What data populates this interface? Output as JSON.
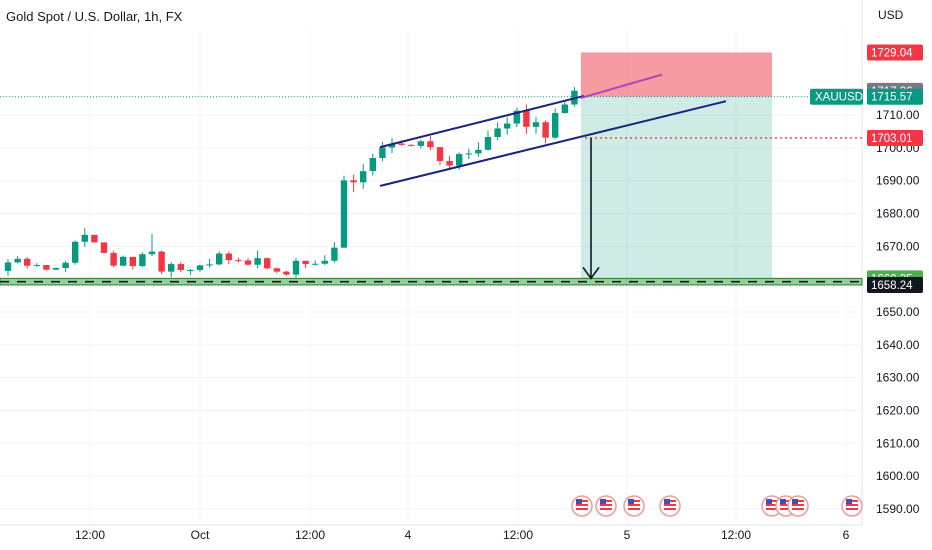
{
  "header": {
    "title": "Gold Spot / U.S. Dollar, 1h, FX"
  },
  "chart_data": {
    "type": "candlestick",
    "symbol": "XAUUSD",
    "currency": "USD",
    "ylim": [
      1585,
      1735
    ],
    "y_ticks": [
      1590,
      1600,
      1610,
      1620,
      1630,
      1640,
      1650,
      1660,
      1670,
      1680,
      1690,
      1700,
      1710
    ],
    "y_tick_labels": [
      "1590.00",
      "1600.00",
      "1610.00",
      "1620.00",
      "1630.00",
      "1640.00",
      "1650.00",
      "1660.00",
      "1670.00",
      "1680.00",
      "1690.00",
      "1700.00",
      "1710.00"
    ],
    "x_labels": [
      "12:00",
      "Oct",
      "12:00",
      "4",
      "12:00",
      "5",
      "12:00",
      "6"
    ],
    "price_tags": [
      {
        "label": "1729.04",
        "value": 1729.04,
        "color": "#f23645"
      },
      {
        "label": "1717.36",
        "value": 1717.36,
        "color": "#787b86"
      },
      {
        "label": "1715.57",
        "value": 1715.57,
        "color": "#089981",
        "symbol": "XAUUSD"
      },
      {
        "label": "1703.01",
        "value": 1703.01,
        "color": "#f23645"
      },
      {
        "label": "1660.25",
        "value": 1660.25,
        "color": "#4caf50"
      },
      {
        "label": "1658.24",
        "value": 1658.24,
        "color": "#131722"
      }
    ],
    "candles_open": [
      1662.5,
      1665.1,
      1666.2,
      1664.1,
      1664.3,
      1662.9,
      1663.4,
      1665,
      1671.4,
      1673.5,
      1671.2,
      1668,
      1664.1,
      1666.8,
      1664,
      1667.6,
      1668.4,
      1662.3,
      1664.6,
      1662.8,
      1662.8,
      1664.2,
      1664.5,
      1667.8,
      1665.8,
      1665.7,
      1664.4,
      1666.4,
      1663.3,
      1662.3,
      1661.4,
      1665.6,
      1664.6,
      1664.7,
      1665.6,
      1669.6,
      1690.1,
      1689.5,
      1692.9,
      1696.9,
      1700.1,
      1701.3,
      1700.9,
      1700.6,
      1702,
      1700.2,
      1696,
      1694.6,
      1698.1,
      1698.3,
      1699.4,
      1703.3,
      1705.9,
      1707.4,
      1711.3,
      1706.4,
      1707.8,
      1703.1,
      1710.6,
      1713.2
    ],
    "candles_close": [
      1665.1,
      1666.2,
      1664.1,
      1664.3,
      1662.9,
      1663.4,
      1665,
      1671.4,
      1673.5,
      1671.2,
      1668,
      1664.1,
      1666.8,
      1664,
      1667.6,
      1668.4,
      1662.3,
      1664.6,
      1662.8,
      1662.8,
      1664.2,
      1664.5,
      1667.8,
      1665.8,
      1665.7,
      1664.4,
      1666.4,
      1663.3,
      1662.3,
      1661.4,
      1665.6,
      1664.6,
      1664.7,
      1665.6,
      1669.6,
      1690.1,
      1689.5,
      1692.9,
      1696.9,
      1700.1,
      1701.3,
      1700.9,
      1700.6,
      1702,
      1700.2,
      1696,
      1694.6,
      1698.1,
      1698.3,
      1699.4,
      1703.3,
      1705.9,
      1707.4,
      1711.3,
      1706.4,
      1707.8,
      1703.1,
      1710.6,
      1713.2,
      1717.4
    ],
    "candles_high": [
      1666.1,
      1667,
      1666.7,
      1664.9,
      1664.4,
      1663.6,
      1665.5,
      1671.8,
      1675.6,
      1673.1,
      1671.2,
      1668.7,
      1667.2,
      1666.8,
      1668.2,
      1673.8,
      1668.7,
      1665.2,
      1665.2,
      1663.1,
      1664.4,
      1666.2,
      1668.5,
      1668.4,
      1666.5,
      1666.5,
      1668.7,
      1666.6,
      1663.6,
      1662.5,
      1666.4,
      1665.6,
      1665.7,
      1667.3,
      1671.3,
      1691.5,
      1691.8,
      1695.1,
      1698.2,
      1701.8,
      1702.9,
      1702.3,
      1701.1,
      1702.5,
      1703.6,
      1700.3,
      1697.6,
      1698.6,
      1699.7,
      1701.7,
      1705.2,
      1707.8,
      1709.3,
      1712.2,
      1713.2,
      1709.4,
      1708.4,
      1712,
      1714.3,
      1718.5
    ],
    "candles_low": [
      1661,
      1664.8,
      1663.3,
      1663.8,
      1662.6,
      1662.7,
      1662.2,
      1664.4,
      1669.8,
      1671.1,
      1667.8,
      1663.7,
      1663.9,
      1663,
      1663.6,
      1667,
      1661.5,
      1660.6,
      1662.1,
      1661.3,
      1662.1,
      1663.5,
      1664.2,
      1664.6,
      1665.1,
      1664.2,
      1663.3,
      1662.9,
      1661.8,
      1661,
      1660.5,
      1663.4,
      1664.1,
      1664.3,
      1665,
      1669.5,
      1686.5,
      1687.5,
      1691.6,
      1695.9,
      1698.4,
      1700.6,
      1700.4,
      1699.7,
      1699.3,
      1694.8,
      1693.5,
      1693.3,
      1696.6,
      1697.3,
      1699.2,
      1702.3,
      1704,
      1706.3,
      1704.2,
      1704.3,
      1701.3,
      1702.6,
      1710.4,
      1712.5
    ],
    "channel": {
      "upper": {
        "from": [
          1,
          1700.2
        ],
        "to": [
          60,
          1720.6
        ]
      },
      "middle": {
        "from": [
          1,
          1688.8
        ],
        "to": [
          67,
          1717.3
        ]
      },
      "lower": {
        "from": [
          1,
          1688.5
        ],
        "to": [
          67,
          1712.0
        ]
      }
    },
    "short_position": {
      "entry": 1715.57,
      "stop": 1729.04,
      "target": 1660.25
    },
    "support_zone": [
      1658.24,
      1660.25
    ],
    "projection_arrow": {
      "from": 1703.01,
      "to": 1660.25
    }
  },
  "colors": {
    "up": "#089981",
    "down": "#f23645",
    "channel": "#1a237e",
    "zone": "#4caf50"
  }
}
